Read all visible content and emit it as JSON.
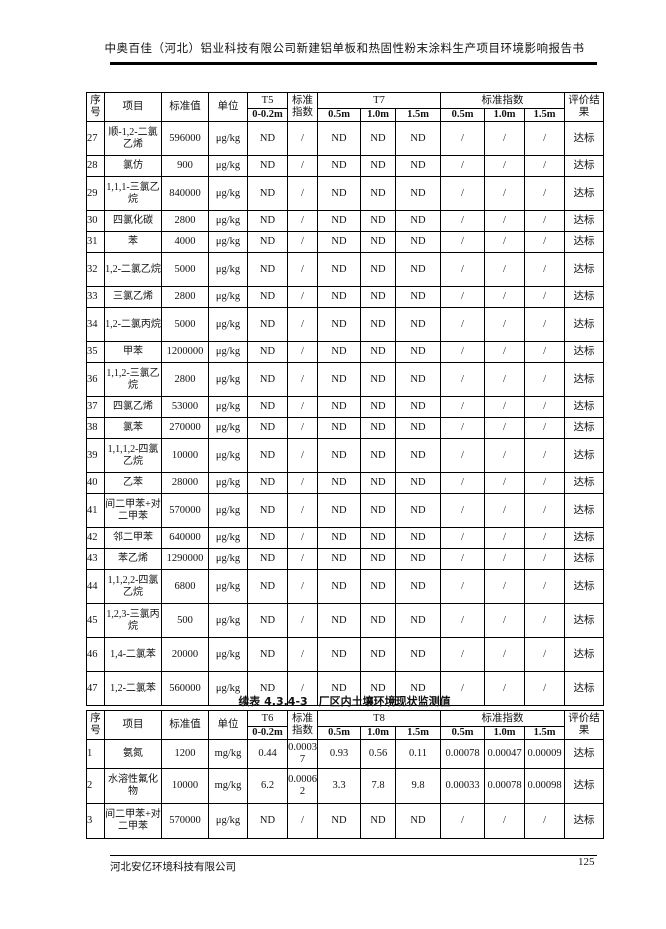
{
  "header": {
    "title": "中奥百佳（河北）铝业科技有限公司新建铝单板和热固性粉末涂料生产项目环境影响报告书"
  },
  "table1": {
    "headers": {
      "seq": "序号",
      "item": "项目",
      "std": "标准值",
      "unit": "单位",
      "site_a": "T5",
      "depth_a": "0-0.2m",
      "index": "标准指数",
      "site_b": "T7",
      "d1": "0.5m",
      "d2": "1.0m",
      "d3": "1.5m",
      "index_group": "标准指数",
      "eval": "评价结果"
    },
    "rows": [
      [
        "27",
        "顺-1,2-二氯乙烯",
        "596000",
        "μg/kg",
        "ND",
        "/",
        "ND",
        "ND",
        "ND",
        "/",
        "/",
        "/",
        "达标"
      ],
      [
        "28",
        "氯仿",
        "900",
        "μg/kg",
        "ND",
        "/",
        "ND",
        "ND",
        "ND",
        "/",
        "/",
        "/",
        "达标"
      ],
      [
        "29",
        "1,1,1-三氯乙烷",
        "840000",
        "μg/kg",
        "ND",
        "/",
        "ND",
        "ND",
        "ND",
        "/",
        "/",
        "/",
        "达标"
      ],
      [
        "30",
        "四氯化碳",
        "2800",
        "μg/kg",
        "ND",
        "/",
        "ND",
        "ND",
        "ND",
        "/",
        "/",
        "/",
        "达标"
      ],
      [
        "31",
        "苯",
        "4000",
        "μg/kg",
        "ND",
        "/",
        "ND",
        "ND",
        "ND",
        "/",
        "/",
        "/",
        "达标"
      ],
      [
        "32",
        "1,2-二氯乙烷",
        "5000",
        "μg/kg",
        "ND",
        "/",
        "ND",
        "ND",
        "ND",
        "/",
        "/",
        "/",
        "达标"
      ],
      [
        "33",
        "三氯乙烯",
        "2800",
        "μg/kg",
        "ND",
        "/",
        "ND",
        "ND",
        "ND",
        "/",
        "/",
        "/",
        "达标"
      ],
      [
        "34",
        "1,2-二氯丙烷",
        "5000",
        "μg/kg",
        "ND",
        "/",
        "ND",
        "ND",
        "ND",
        "/",
        "/",
        "/",
        "达标"
      ],
      [
        "35",
        "甲苯",
        "1200000",
        "μg/kg",
        "ND",
        "/",
        "ND",
        "ND",
        "ND",
        "/",
        "/",
        "/",
        "达标"
      ],
      [
        "36",
        "1,1,2-三氯乙烷",
        "2800",
        "μg/kg",
        "ND",
        "/",
        "ND",
        "ND",
        "ND",
        "/",
        "/",
        "/",
        "达标"
      ],
      [
        "37",
        "四氯乙烯",
        "53000",
        "μg/kg",
        "ND",
        "/",
        "ND",
        "ND",
        "ND",
        "/",
        "/",
        "/",
        "达标"
      ],
      [
        "38",
        "氯苯",
        "270000",
        "μg/kg",
        "ND",
        "/",
        "ND",
        "ND",
        "ND",
        "/",
        "/",
        "/",
        "达标"
      ],
      [
        "39",
        "1,1,1,2-四氯乙烷",
        "10000",
        "μg/kg",
        "ND",
        "/",
        "ND",
        "ND",
        "ND",
        "/",
        "/",
        "/",
        "达标"
      ],
      [
        "40",
        "乙苯",
        "28000",
        "μg/kg",
        "ND",
        "/",
        "ND",
        "ND",
        "ND",
        "/",
        "/",
        "/",
        "达标"
      ],
      [
        "41",
        "间二甲苯+对二甲苯",
        "570000",
        "μg/kg",
        "ND",
        "/",
        "ND",
        "ND",
        "ND",
        "/",
        "/",
        "/",
        "达标"
      ],
      [
        "42",
        "邻二甲苯",
        "640000",
        "μg/kg",
        "ND",
        "/",
        "ND",
        "ND",
        "ND",
        "/",
        "/",
        "/",
        "达标"
      ],
      [
        "43",
        "苯乙烯",
        "1290000",
        "μg/kg",
        "ND",
        "/",
        "ND",
        "ND",
        "ND",
        "/",
        "/",
        "/",
        "达标"
      ],
      [
        "44",
        "1,1,2,2-四氯乙烷",
        "6800",
        "μg/kg",
        "ND",
        "/",
        "ND",
        "ND",
        "ND",
        "/",
        "/",
        "/",
        "达标"
      ],
      [
        "45",
        "1,2,3-三氯丙烷",
        "500",
        "μg/kg",
        "ND",
        "/",
        "ND",
        "ND",
        "ND",
        "/",
        "/",
        "/",
        "达标"
      ],
      [
        "46",
        "1,4-二氯苯",
        "20000",
        "μg/kg",
        "ND",
        "/",
        "ND",
        "ND",
        "ND",
        "/",
        "/",
        "/",
        "达标"
      ],
      [
        "47",
        "1,2-二氯苯",
        "560000",
        "μg/kg",
        "ND",
        "/",
        "ND",
        "ND",
        "ND",
        "/",
        "/",
        "/",
        "达标"
      ]
    ]
  },
  "caption": "续表 4.3.4-3　厂区内土壤环境现状监测值",
  "table2": {
    "headers": {
      "seq": "序号",
      "item": "项目",
      "std": "标准值",
      "unit": "单位",
      "site_a": "T6",
      "depth_a": "0-0.2m",
      "index": "标准指数",
      "site_b": "T8",
      "d1": "0.5m",
      "d2": "1.0m",
      "d3": "1.5m",
      "index_group": "标准指数",
      "eval": "评价结果"
    },
    "rows": [
      [
        "1",
        "氨氮",
        "1200",
        "mg/kg",
        "0.44",
        "0.00037",
        "0.93",
        "0.56",
        "0.11",
        "0.00078",
        "0.00047",
        "0.00009",
        "达标"
      ],
      [
        "2",
        "水溶性氟化物",
        "10000",
        "mg/kg",
        "6.2",
        "0.00062",
        "3.3",
        "7.8",
        "9.8",
        "0.00033",
        "0.00078",
        "0.00098",
        "达标"
      ],
      [
        "3",
        "间二甲苯+对二甲苯",
        "570000",
        "μg/kg",
        "ND",
        "/",
        "ND",
        "ND",
        "ND",
        "/",
        "/",
        "/",
        "达标"
      ]
    ]
  },
  "footer": {
    "company": "河北安亿环境科技有限公司",
    "page": "125"
  }
}
